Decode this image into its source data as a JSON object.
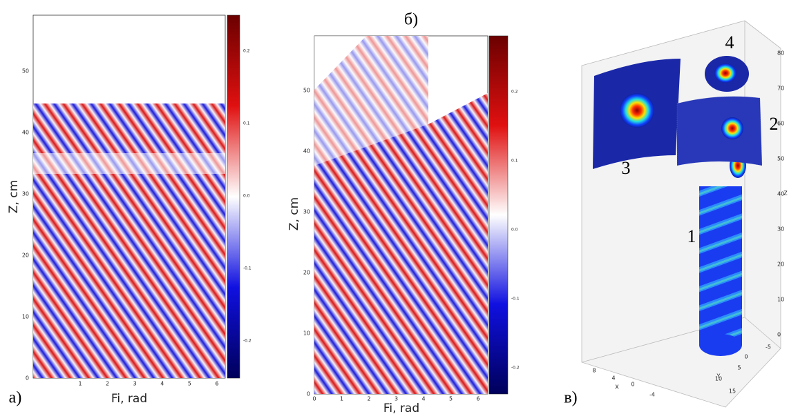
{
  "panels": [
    {
      "label": "а)",
      "xlabel": "Fi, rad",
      "ylabel": "Z, cm",
      "xticks": [
        "1",
        "2",
        "3",
        "4",
        "5",
        "6"
      ],
      "yticks": [
        "0",
        "10",
        "20",
        "30",
        "40",
        "50"
      ],
      "cbar_ticks": [
        "0.2",
        "0.1",
        "0.0",
        "-0.1",
        "-0.2"
      ]
    },
    {
      "label": "б)",
      "xlabel": "Fi, rad",
      "ylabel": "Z, cm",
      "xticks": [
        "0",
        "1",
        "2",
        "3",
        "4",
        "5",
        "6"
      ],
      "yticks": [
        "0",
        "10",
        "20",
        "30",
        "40",
        "50"
      ],
      "cbar_ticks": [
        "0.2",
        "0.1",
        "0.0",
        "-0.1",
        "-0.2"
      ]
    },
    {
      "label": "в)",
      "markers": [
        "1",
        "2",
        "3",
        "4"
      ],
      "x_ticks": [
        "8",
        "4",
        "0",
        "-4"
      ],
      "y_ticks": [
        "15",
        "10",
        "5",
        "0",
        "-5"
      ],
      "z_ticks": [
        "0",
        "10",
        "20",
        "30",
        "40",
        "50",
        "60",
        "70",
        "80"
      ],
      "axis_labels": [
        "X",
        "Y",
        "Z"
      ]
    }
  ]
}
